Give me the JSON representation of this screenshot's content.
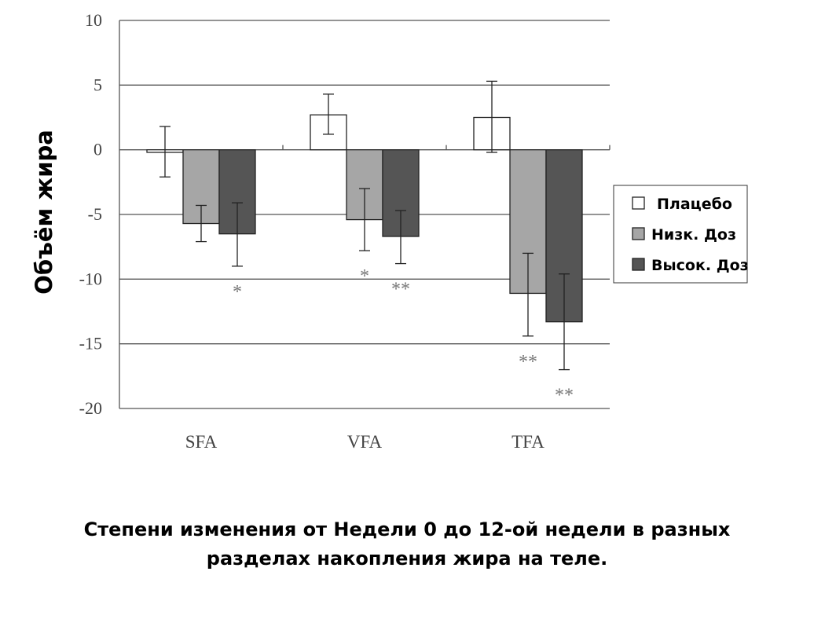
{
  "chart_data": {
    "type": "bar",
    "ylabel": "Объём жира",
    "categories": [
      "SFA",
      "VFA",
      "TFA"
    ],
    "ylim": [
      -20,
      10
    ],
    "yticks": [
      10,
      5,
      0,
      -5,
      -10,
      -15,
      -20
    ],
    "ytick_labels": [
      "10",
      "5",
      "0",
      "-5",
      "-10",
      "-15",
      "-20"
    ],
    "legend_position": "right",
    "grid": "horizontal",
    "series": [
      {
        "name": "Плацебо",
        "color": "#ffffff",
        "values": [
          -0.2,
          2.7,
          2.5
        ],
        "err_low": [
          -2.1,
          1.2,
          -0.2
        ],
        "err_high": [
          1.8,
          4.3,
          5.3
        ],
        "sig": [
          "",
          "",
          ""
        ]
      },
      {
        "name": "Низк. Доз",
        "color": "#a6a6a6",
        "values": [
          -5.7,
          -5.4,
          -11.1
        ],
        "err_low": [
          -7.1,
          -7.8,
          -14.4
        ],
        "err_high": [
          -4.3,
          -3.0,
          -8.0
        ],
        "sig": [
          "",
          "*",
          "**"
        ]
      },
      {
        "name": "Высок. Доз",
        "color": "#555555",
        "values": [
          -6.5,
          -6.7,
          -13.3
        ],
        "err_low": [
          -9.0,
          -8.8,
          -17.0
        ],
        "err_high": [
          -4.1,
          -4.7,
          -9.6
        ],
        "sig": [
          "*",
          "**",
          "**"
        ]
      }
    ]
  },
  "caption": {
    "line1": "Степени изменения от Недели 0 до 12-ой недели в разных",
    "line2": "разделах накопления жира на теле."
  }
}
